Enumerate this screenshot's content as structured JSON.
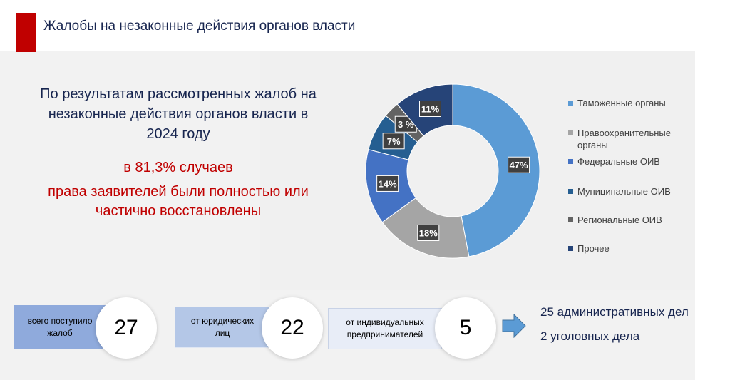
{
  "header": {
    "title": "Жалобы на незаконные действия органов власти"
  },
  "intro": {
    "line1": "По результатам рассмотренных жалоб на",
    "line2": "незаконные действия органов власти в",
    "line3": "2024 году"
  },
  "highlight": {
    "line1": "в 81,3% случаев",
    "line2": "права заявителей были полностью или",
    "line3": "частично восстановлены"
  },
  "colors": {
    "accent_red": "#c00000",
    "navy_text": "#17254f"
  },
  "chart_data": {
    "type": "pie",
    "donut": true,
    "series": [
      {
        "name": "Таможенные органы",
        "value": 47,
        "label": "47%",
        "color": "#5b9bd5"
      },
      {
        "name": "Правоохранительные органы",
        "value": 18,
        "label": "18%",
        "color": "#a5a5a5"
      },
      {
        "name": "Федеральные ОИВ",
        "value": 14,
        "label": "14%",
        "color": "#4472c4"
      },
      {
        "name": "Муниципальные ОИВ",
        "value": 7,
        "label": "7%",
        "color": "#255e91"
      },
      {
        "name": "Региональные ОИВ",
        "value": 3,
        "label": "3 %",
        "color": "#636363"
      },
      {
        "name": "Прочее",
        "value": 11,
        "label": "11%",
        "color": "#264478"
      }
    ],
    "legend_position": "right"
  },
  "legend": [
    {
      "line1": "Таможенные органы",
      "line2": ""
    },
    {
      "line1": "Правоохранительные",
      "line2": "органы"
    },
    {
      "line1": "Федеральные ОИВ",
      "line2": ""
    },
    {
      "line1": "Муниципальные ОИВ",
      "line2": ""
    },
    {
      "line1": "Региональные ОИВ",
      "line2": ""
    },
    {
      "line1": "Прочее",
      "line2": ""
    }
  ],
  "stats": [
    {
      "line1": "всего поступило",
      "line2": "жалоб",
      "value": "27",
      "bg": "#8faadc"
    },
    {
      "line1": "от юридических",
      "line2": "лиц",
      "value": "22",
      "bg": "#b4c7e7"
    },
    {
      "line1": "от индивидуальных",
      "line2": "предпринимателей",
      "value": "5",
      "bg": "#e8edf7"
    }
  ],
  "outcomes": {
    "admin": "25 административных дел",
    "criminal": "2 уголовных дела"
  }
}
